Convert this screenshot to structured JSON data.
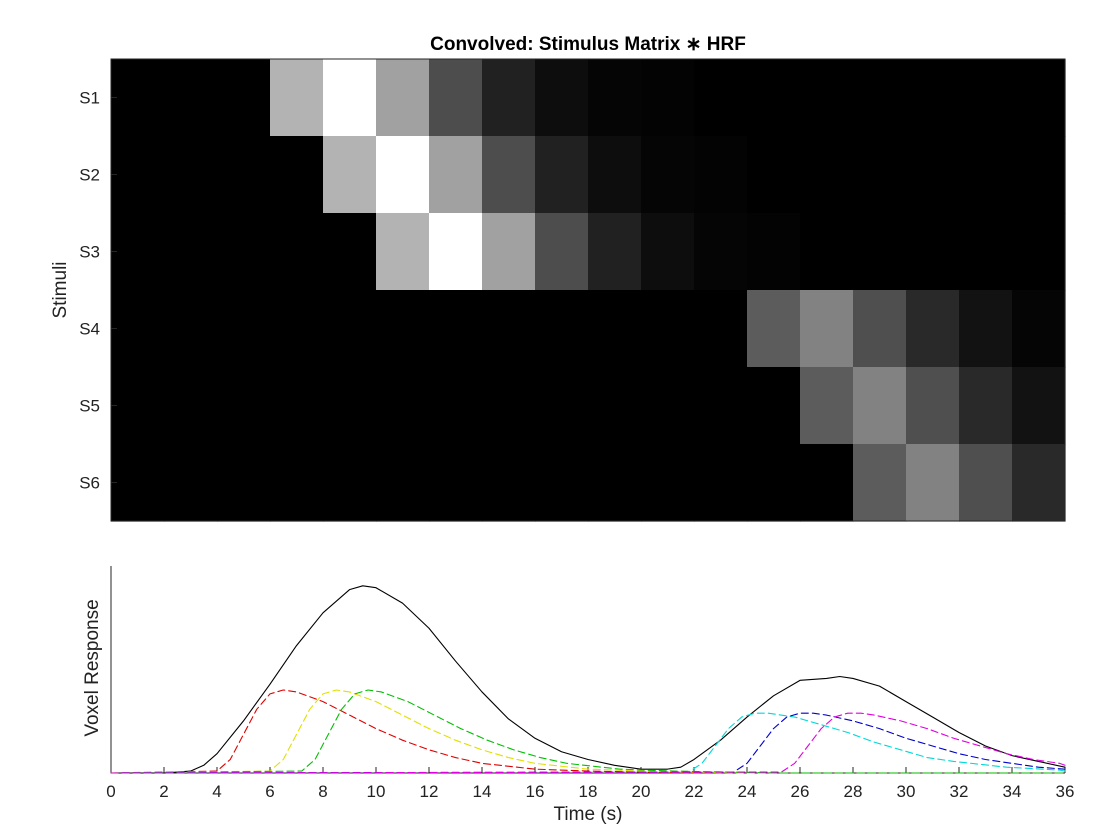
{
  "chart_data": [
    {
      "type": "heatmap",
      "title": "Convolved: Stimulus Matrix ∗ HRF",
      "ylabel": "Stimuli",
      "xlabel": "",
      "rows": [
        "S1",
        "S2",
        "S3",
        "S4",
        "S5",
        "S6"
      ],
      "xlim": [
        0,
        36
      ],
      "column_width": 2,
      "colormap": "gray",
      "values": [
        [
          0,
          0,
          0,
          0.7,
          1.0,
          0.63,
          0.3,
          0.13,
          0.05,
          0.02,
          0.01,
          0,
          0,
          0,
          0,
          0,
          0,
          0
        ],
        [
          0,
          0,
          0,
          0,
          0.7,
          1.0,
          0.63,
          0.3,
          0.13,
          0.05,
          0.02,
          0.01,
          0,
          0,
          0,
          0,
          0,
          0
        ],
        [
          0,
          0,
          0,
          0,
          0,
          0.7,
          1.0,
          0.63,
          0.3,
          0.13,
          0.05,
          0.02,
          0.01,
          0,
          0,
          0,
          0,
          0
        ],
        [
          0,
          0,
          0,
          0,
          0,
          0,
          0,
          0,
          0,
          0,
          0,
          0,
          0.36,
          0.51,
          0.31,
          0.16,
          0.07,
          0.02
        ],
        [
          0,
          0,
          0,
          0,
          0,
          0,
          0,
          0,
          0,
          0,
          0,
          0,
          0,
          0.36,
          0.51,
          0.31,
          0.16,
          0.07
        ],
        [
          0,
          0,
          0,
          0,
          0,
          0,
          0,
          0,
          0,
          0,
          0,
          0,
          0,
          0,
          0.36,
          0.51,
          0.31,
          0.16
        ]
      ]
    },
    {
      "type": "line",
      "title": "",
      "xlabel": "Time (s)",
      "ylabel": "Voxel Response",
      "xlim": [
        0,
        36
      ],
      "ylim": [
        0,
        1
      ],
      "xticks": [
        0,
        2,
        4,
        6,
        8,
        10,
        12,
        14,
        16,
        18,
        20,
        22,
        24,
        26,
        28,
        30,
        32,
        34,
        36
      ],
      "series": [
        {
          "color": "#000000",
          "style": "solid",
          "x": [
            0,
            2,
            3,
            3.5,
            4,
            5,
            6,
            7,
            8,
            9,
            9.5,
            10,
            11,
            12,
            13,
            14,
            15,
            16,
            17,
            18,
            19,
            20,
            20.5,
            21,
            21.5,
            22,
            23,
            24,
            25,
            26,
            27,
            27.5,
            28,
            29,
            30,
            31,
            32,
            33,
            34,
            35,
            36
          ],
          "y": [
            0,
            0,
            0.01,
            0.04,
            0.1,
            0.27,
            0.46,
            0.66,
            0.83,
            0.95,
            0.97,
            0.96,
            0.88,
            0.75,
            0.58,
            0.42,
            0.28,
            0.18,
            0.11,
            0.07,
            0.04,
            0.02,
            0.02,
            0.02,
            0.03,
            0.07,
            0.17,
            0.29,
            0.4,
            0.48,
            0.49,
            0.5,
            0.49,
            0.45,
            0.37,
            0.29,
            0.21,
            0.14,
            0.09,
            0.06,
            0.03
          ]
        },
        {
          "color": "#e00000",
          "style": "dashed",
          "x": [
            0,
            4,
            4.5,
            5,
            5.5,
            6,
            6.5,
            7,
            8,
            9,
            10,
            11,
            12,
            13,
            14,
            16,
            18,
            20,
            22,
            24,
            36
          ],
          "y": [
            0,
            0.01,
            0.07,
            0.2,
            0.33,
            0.41,
            0.43,
            0.42,
            0.37,
            0.3,
            0.23,
            0.17,
            0.12,
            0.08,
            0.05,
            0.02,
            0.01,
            0.005,
            0,
            0,
            0
          ]
        },
        {
          "color": "#e0e000",
          "style": "dashed",
          "x": [
            0,
            6,
            6.5,
            7,
            7.5,
            8,
            8.5,
            9,
            10,
            11,
            12,
            13,
            14,
            15,
            16,
            18,
            20,
            22,
            24,
            36
          ],
          "y": [
            0,
            0.01,
            0.07,
            0.2,
            0.33,
            0.41,
            0.43,
            0.42,
            0.37,
            0.3,
            0.23,
            0.17,
            0.12,
            0.08,
            0.05,
            0.02,
            0.01,
            0.005,
            0,
            0
          ]
        },
        {
          "color": "#00c000",
          "style": "dashed",
          "x": [
            0,
            7.2,
            7.7,
            8.2,
            8.7,
            9.2,
            9.7,
            10.2,
            11.2,
            12.2,
            13.2,
            14.2,
            15.2,
            16.2,
            17.2,
            19.2,
            21.2,
            23.2,
            25.2,
            36
          ],
          "y": [
            0,
            0.01,
            0.07,
            0.2,
            0.33,
            0.41,
            0.43,
            0.42,
            0.37,
            0.3,
            0.23,
            0.17,
            0.12,
            0.08,
            0.05,
            0.02,
            0.01,
            0.005,
            0,
            0
          ]
        },
        {
          "color": "#00d8d8",
          "style": "dashed",
          "x": [
            0,
            21.8,
            22.3,
            22.8,
            23.3,
            23.8,
            24.3,
            24.8,
            25.8,
            26.8,
            27.8,
            28.8,
            29.8,
            30.8,
            31.8,
            33.8,
            35.8,
            36
          ],
          "y": [
            0,
            0.005,
            0.05,
            0.14,
            0.23,
            0.29,
            0.31,
            0.31,
            0.29,
            0.25,
            0.21,
            0.16,
            0.12,
            0.08,
            0.06,
            0.03,
            0.015,
            0.01
          ]
        },
        {
          "color": "#0000cc",
          "style": "dashed",
          "x": [
            0,
            23.5,
            24,
            24.5,
            25,
            25.5,
            26,
            26.5,
            27,
            28,
            29,
            30,
            31,
            32,
            33,
            34,
            35,
            36
          ],
          "y": [
            0,
            0.005,
            0.05,
            0.14,
            0.23,
            0.29,
            0.31,
            0.31,
            0.3,
            0.27,
            0.23,
            0.18,
            0.14,
            0.1,
            0.07,
            0.05,
            0.03,
            0.02
          ]
        },
        {
          "color": "#e000e0",
          "style": "dashed",
          "x": [
            0,
            25.3,
            25.8,
            26.3,
            26.8,
            27.3,
            27.8,
            28.3,
            28.8,
            29.8,
            30.8,
            31.8,
            32.8,
            33.8,
            34.8,
            35.8,
            36
          ],
          "y": [
            0,
            0.005,
            0.05,
            0.14,
            0.23,
            0.29,
            0.31,
            0.31,
            0.3,
            0.27,
            0.23,
            0.18,
            0.14,
            0.1,
            0.07,
            0.05,
            0.04
          ]
        }
      ]
    }
  ]
}
